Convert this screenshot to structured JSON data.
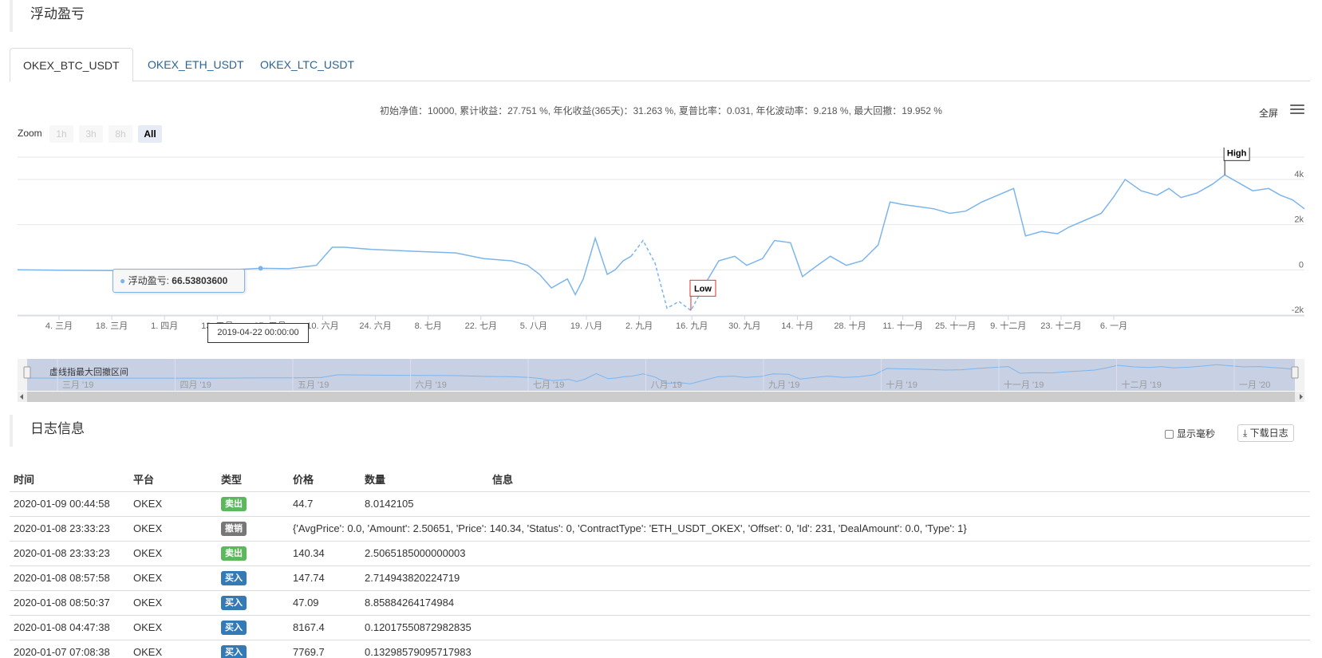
{
  "section_profit": {
    "title": "浮动盈亏"
  },
  "tabs": [
    "OKEX_BTC_USDT",
    "OKEX_ETH_USDT",
    "OKEX_LTC_USDT"
  ],
  "stats_text": "初始净值：10000, 累计收益：27.751 %, 年化收益(365天)：31.263 %, 夏普比率：0.031, 年化波动率：9.218 %, 最大回撤：19.952 %",
  "fullscreen_label": "全屏",
  "zoom": {
    "label": "Zoom",
    "buttons": [
      "1h",
      "3h",
      "8h",
      "All"
    ],
    "selected": "All"
  },
  "chart_data": {
    "type": "line",
    "series": [
      {
        "name": "浮动盈亏",
        "x": [
          "2019-02-20",
          "2019-03-04",
          "2019-03-18",
          "2019-04-01",
          "2019-04-15",
          "2019-04-22",
          "2019-04-29",
          "2019-05-06",
          "2019-05-10",
          "2019-05-13",
          "2019-05-20",
          "2019-05-27",
          "2019-06-03",
          "2019-06-10",
          "2019-06-17",
          "2019-06-24",
          "2019-06-28",
          "2019-07-01",
          "2019-07-04",
          "2019-07-08",
          "2019-07-10",
          "2019-07-12",
          "2019-07-15",
          "2019-07-18",
          "2019-07-20",
          "2019-07-22",
          "2019-07-24",
          "2019-07-27",
          "2019-07-30",
          "2019-08-02",
          "2019-08-05",
          "2019-08-08",
          "2019-08-12",
          "2019-08-15",
          "2019-08-19",
          "2019-08-22",
          "2019-08-26",
          "2019-08-29",
          "2019-09-02",
          "2019-09-05",
          "2019-09-08",
          "2019-09-12",
          "2019-09-16",
          "2019-09-20",
          "2019-09-24",
          "2019-09-27",
          "2019-09-30",
          "2019-10-04",
          "2019-10-08",
          "2019-10-12",
          "2019-10-16",
          "2019-10-20",
          "2019-10-24",
          "2019-10-28",
          "2019-10-31",
          "2019-11-04",
          "2019-11-08",
          "2019-11-11",
          "2019-11-15",
          "2019-11-19",
          "2019-11-22",
          "2019-11-25",
          "2019-11-29",
          "2019-12-03",
          "2019-12-06",
          "2019-12-09",
          "2019-12-13",
          "2019-12-17",
          "2019-12-20",
          "2019-12-23",
          "2019-12-27",
          "2019-12-31",
          "2020-01-03",
          "2020-01-06",
          "2020-01-09"
        ],
        "values": [
          0,
          -20,
          -30,
          -20,
          0,
          67,
          50,
          200,
          1000,
          1000,
          900,
          850,
          800,
          750,
          500,
          400,
          200,
          -200,
          -800,
          -400,
          -1100,
          -400,
          1400,
          -200,
          0,
          400,
          600,
          1300,
          300,
          -1700,
          -1400,
          -1800,
          -500,
          400,
          600,
          200,
          500,
          1300,
          1200,
          -300,
          100,
          600,
          200,
          400,
          1100,
          3000,
          2900,
          2800,
          2700,
          2500,
          2600,
          3000,
          3300,
          3600,
          1500,
          1700,
          1600,
          1900,
          2200,
          2500,
          3200,
          4000,
          3500,
          3300,
          3600,
          3200,
          3400,
          3800,
          4200,
          3900,
          3500,
          3600,
          3300,
          3100,
          2700
        ],
        "dashed_segments": [
          [
            "2019-07-24",
            "2019-08-12"
          ]
        ]
      }
    ],
    "x_tick_labels": [
      "4. 三月",
      "18. 三月",
      "1. 四月",
      "13. 五月",
      "27. 五月",
      "10. 六月",
      "24. 六月",
      "8. 七月",
      "22. 七月",
      "5. 八月",
      "19. 八月",
      "2. 九月",
      "16. 九月",
      "30. 九月",
      "14. 十月",
      "28. 十月",
      "11. 十一月",
      "25. 十一月",
      "9. 十二月",
      "23. 十二月",
      "6. 一月"
    ],
    "y_tick_labels": [
      "4k",
      "2k",
      "0",
      "-2k"
    ],
    "ylim": [
      -2000,
      4000
    ],
    "flags": [
      {
        "label": "High"
      },
      {
        "label": "Low"
      }
    ],
    "tooltip": {
      "series": "浮动盈亏",
      "value": "66.53803600",
      "date": "2019-04-22 00:00:00"
    },
    "navigator": {
      "label": "虚线指最大回撤区间",
      "tick_labels": [
        "三月 '19",
        "四月 '19",
        "五月 '19",
        "六月 '19",
        "七月 '19",
        "八月 '19",
        "九月 '19",
        "十月 '19",
        "十一月 '19",
        "十二月 '19",
        "一月 '20"
      ]
    },
    "grid": true,
    "legend": "none"
  },
  "section_log": {
    "title": "日志信息"
  },
  "log_controls": {
    "show_ms_label": "显示毫秒",
    "download_label": "下载日志"
  },
  "log_table": {
    "headers": [
      "时间",
      "平台",
      "类型",
      "价格",
      "数量",
      "信息"
    ],
    "rows": [
      {
        "time": "2020-01-09 00:44:58",
        "platform": "OKEX",
        "type": "卖出",
        "type_color": "#5cb85c",
        "price": "44.7",
        "amount": "8.0142105",
        "info": ""
      },
      {
        "time": "2020-01-08 23:33:23",
        "platform": "OKEX",
        "type": "撤销",
        "type_color": "#777777",
        "price": "",
        "amount": "",
        "info": "{'AvgPrice': 0.0, 'Amount': 2.50651, 'Price': 140.34, 'Status': 0, 'ContractType': 'ETH_USDT_OKEX', 'Offset': 0, 'Id': 231, 'DealAmount': 0.0, 'Type': 1}"
      },
      {
        "time": "2020-01-08 23:33:23",
        "platform": "OKEX",
        "type": "卖出",
        "type_color": "#5cb85c",
        "price": "140.34",
        "amount": "2.5065185000000003",
        "info": ""
      },
      {
        "time": "2020-01-08 08:57:58",
        "platform": "OKEX",
        "type": "买入",
        "type_color": "#337ab7",
        "price": "147.74",
        "amount": "2.714943820224719",
        "info": ""
      },
      {
        "time": "2020-01-08 08:50:37",
        "platform": "OKEX",
        "type": "买入",
        "type_color": "#337ab7",
        "price": "47.09",
        "amount": "8.85884264174984",
        "info": ""
      },
      {
        "time": "2020-01-08 04:47:38",
        "platform": "OKEX",
        "type": "买入",
        "type_color": "#337ab7",
        "price": "8167.4",
        "amount": "0.12017550872982835",
        "info": ""
      },
      {
        "time": "2020-01-07 07:08:38",
        "platform": "OKEX",
        "type": "买入",
        "type_color": "#337ab7",
        "price": "7769.7",
        "amount": "0.13298579095717983",
        "info": ""
      }
    ]
  }
}
